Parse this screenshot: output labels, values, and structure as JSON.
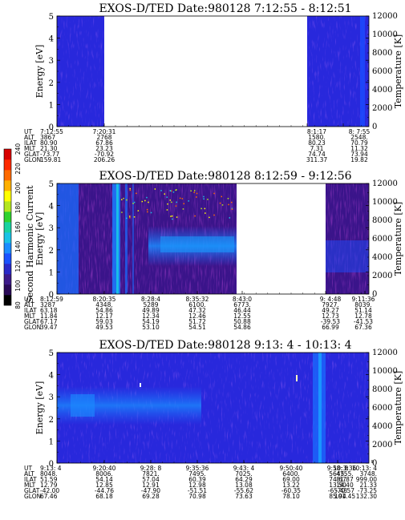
{
  "figure": {
    "colorbar": {
      "label": "Second Harmonic Current",
      "ticks": [
        "80",
        "100",
        "120",
        "140",
        "160",
        "180",
        "200",
        "220",
        "240"
      ],
      "colors": [
        "#000000",
        "#2a0a58",
        "#3d1a8a",
        "#2a2ac8",
        "#1a52ff",
        "#1a8cff",
        "#19c2e6",
        "#19d2a0",
        "#2fd22f",
        "#b4e61e",
        "#ffff00",
        "#ffb000",
        "#ff6a00",
        "#ff2a00",
        "#d80000"
      ]
    },
    "ephemeris_row_labels": [
      "UT",
      "ALT",
      "ILAT",
      "MLT",
      "GLAT",
      "GLON"
    ]
  },
  "chart_data": [
    {
      "type": "heatmap",
      "title": "EXOS-D/TED   Date:980128   7:12:55 - 8:12:51",
      "ylabel": "Energy [eV]",
      "y2label": "Temperature [K]",
      "ylim": [
        0,
        5
      ],
      "y2lim": [
        0,
        12000
      ],
      "yticks": [
        "0",
        "1",
        "2",
        "3",
        "4",
        "5"
      ],
      "y2ticks": [
        "0",
        "2000",
        "4000",
        "6000",
        "8000",
        "10000",
        "12000"
      ],
      "data_segments": [
        {
          "start": "7:12:55",
          "end": "7:20:31",
          "level": "low",
          "note": "blue background with faint noise"
        },
        {
          "start": "8:1:17",
          "end": "8:12:51",
          "level": "low",
          "note": "blue background with faint noise"
        }
      ],
      "ephemeris": [
        {
          "UT": "7:12:55",
          "ALT": "3867",
          "ILAT": "80.90",
          "MLT": "21.30",
          "GLAT": "-73.77",
          "GLON": "159.81"
        },
        {
          "UT": "7:20:31",
          "ALT": "2768",
          "ILAT": "67.86",
          "MLT": "23.23",
          "GLAT": "-70.92",
          "GLON": "206.26"
        },
        {
          "UT": "8:1:17",
          "ALT": "1580.",
          "ILAT": "80.23",
          "MLT": "7.31",
          "GLAT": "74.74",
          "GLON": "311.37"
        },
        {
          "UT": "8: 7:55",
          "ALT": "2548.",
          "ILAT": "70.79",
          "MLT": "11.32",
          "GLAT": "73.94",
          "GLON": "19.82"
        }
      ]
    },
    {
      "type": "heatmap",
      "title": "EXOS-D/TED   Date:980128   8:12:59 - 9:12:56",
      "ylabel": "Energy [eV]",
      "y2label": "Temperature [K]",
      "ylim": [
        0,
        5
      ],
      "y2lim": [
        0,
        12000
      ],
      "yticks": [
        "0",
        "1",
        "2",
        "3",
        "4",
        "5"
      ],
      "y2ticks": [
        "0",
        "2000",
        "4000",
        "6000",
        "8000",
        "10000",
        "12000"
      ],
      "data_segments": [
        {
          "start": "8:12:59",
          "end": "8:43:0",
          "level": "enhanced",
          "note": "purple background, intense cyan streaks near 8:28, cyan band near 2.5 eV"
        },
        {
          "start": "9: 4:48",
          "end": "9:12:56",
          "level": "medium",
          "note": "purple and blue"
        }
      ],
      "ephemeris": [
        {
          "UT": "8:12:59",
          "ALT": "3287",
          "ILAT": "63.18",
          "MLT": "11.84",
          "GLAT": "67.17",
          "GLON": "39.47"
        },
        {
          "UT": "8:20:35",
          "ALT": "4348.",
          "ILAT": "54.86",
          "MLT": "12.17",
          "GLAT": "59.03",
          "GLON": "49.53"
        },
        {
          "UT": "8:28:4",
          "ALT": "5289",
          "ILAT": "49.89",
          "MLT": "12.34",
          "GLAT": "54.19",
          "GLON": "53.10"
        },
        {
          "UT": "8:35:32",
          "ALT": "6100.",
          "ILAT": "47.32",
          "MLT": "12.46",
          "GLAT": "51.72",
          "GLON": "54.51"
        },
        {
          "UT": "8:43:0",
          "ALT": "6773.",
          "ILAT": "46.44",
          "MLT": "12.55",
          "GLAT": "50.88",
          "GLON": "54.86"
        },
        {
          "UT": "9: 4:48",
          "ALT": "7927.",
          "ILAT": "49.27",
          "MLT": "12.73",
          "GLAT": "-39.53",
          "GLON": "66.99"
        },
        {
          "UT": "9:11:36",
          "ALT": "8039.",
          "ILAT": "51.14",
          "MLT": "12.78",
          "GLAT": "-41.53",
          "GLON": "67.36"
        }
      ]
    },
    {
      "type": "heatmap",
      "title": "EXOS-D/TED   Date:980128   9:13: 4 - 10:13: 4",
      "ylabel": "Energy [eV]",
      "y2label": "Temperature [K]",
      "ylim": [
        0,
        5
      ],
      "y2lim": [
        0,
        12000
      ],
      "yticks": [
        "0",
        "1",
        "2",
        "3",
        "4",
        "5"
      ],
      "y2ticks": [
        "0",
        "2000",
        "4000",
        "6000",
        "8000",
        "10000",
        "12000"
      ],
      "data_segments": [
        {
          "start": "9:13: 4",
          "end": "10:13: 4",
          "level": "low",
          "note": "blue, brighter band near 2.5 eV early, bright streak near 10:3:36"
        }
      ],
      "ephemeris": [
        {
          "UT": "9:13: 4",
          "ALT": "8048.",
          "ILAT": "51.59",
          "MLT": "12.79",
          "GLAT": "-42.00",
          "GLON": "67.46"
        },
        {
          "UT": "9:20:40",
          "ALT": "8006.",
          "ILAT": "54.14",
          "MLT": "12.85",
          "GLAT": "-44.76",
          "GLON": "68.18"
        },
        {
          "UT": "9:28: 8",
          "ALT": "7821.",
          "ILAT": "57.04",
          "MLT": "12.91",
          "GLAT": "-47.90",
          "GLON": "69.28"
        },
        {
          "UT": "9:35:36",
          "ALT": "7495.",
          "ILAT": "60.39",
          "MLT": "12.98",
          "GLAT": "-51.51",
          "GLON": "70.98"
        },
        {
          "UT": "9:43: 4",
          "ALT": "7025.",
          "ILAT": "64.29",
          "MLT": "13.08",
          "GLAT": "-55.62",
          "GLON": "73.63"
        },
        {
          "UT": "9:50:40",
          "ALT": "6400.",
          "ILAT": "69.00",
          "MLT": "13.22",
          "GLAT": "-60.35",
          "GLON": "78.10"
        },
        {
          "UT": "9:58: 8",
          "ALT": "5645.",
          "ILAT": "74.67",
          "MLT": "13.50",
          "GLAT": "-65.48",
          "GLON": "85.94"
        },
        {
          "UT": "10:3:36",
          "ALT": "4755.",
          "ILAT": "81.87",
          "MLT": "14.40",
          "GLAT": "-70.57",
          "GLON": "101.45"
        },
        {
          "UT": "10:13: 4",
          "ALT": "3748.",
          "ILAT": "999.00",
          "MLT": "21.33",
          "GLAT": "-73.25",
          "GLON": "132.30"
        }
      ]
    }
  ]
}
